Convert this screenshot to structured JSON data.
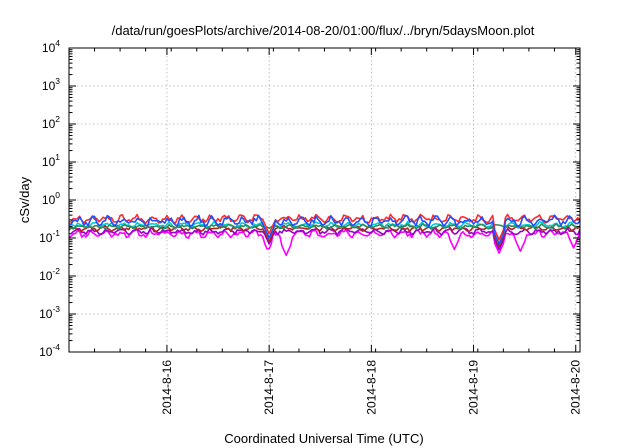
{
  "chart_data": {
    "type": "line",
    "title": "/data/run/goesPlots/archive/2014-08-20/01:00/flux/../bryn/5daysMoon.plot",
    "xlabel": "Coordinated Universal Time (UTC)",
    "ylabel": "cSv/day",
    "yscale": "log",
    "ylim": [
      0.0001,
      10000
    ],
    "xlim": [
      "2014-08-15 01:00",
      "2014-08-20 01:00"
    ],
    "grid": true,
    "x_ticks": [
      {
        "value": "2014-08-16 00:00",
        "label": "2014-8-16"
      },
      {
        "value": "2014-08-17 00:00",
        "label": "2014-8-17"
      },
      {
        "value": "2014-08-18 00:00",
        "label": "2014-8-18"
      },
      {
        "value": "2014-08-19 00:00",
        "label": "2014-8-19"
      },
      {
        "value": "2014-08-20 00:00",
        "label": "2014-8-20"
      }
    ],
    "y_ticks": [
      {
        "value": 0.0001,
        "base": "10",
        "exp": "-4"
      },
      {
        "value": 0.001,
        "base": "10",
        "exp": "-3"
      },
      {
        "value": 0.01,
        "base": "10",
        "exp": "-2"
      },
      {
        "value": 0.1,
        "base": "10",
        "exp": "-1"
      },
      {
        "value": 1,
        "base": "10",
        "exp": "0"
      },
      {
        "value": 10,
        "base": "10",
        "exp": "1"
      },
      {
        "value": 100,
        "base": "10",
        "exp": "2"
      },
      {
        "value": 1000,
        "base": "10",
        "exp": "3"
      },
      {
        "value": 10000,
        "base": "10",
        "exp": "4"
      }
    ],
    "series": [
      {
        "color": "#ff00ff",
        "level": 0.13,
        "jitter": 0.35,
        "seed": 11,
        "dips": [
          {
            "x": "2014-08-16 23:45",
            "y": 0.045
          },
          {
            "x": "2014-08-17 04:00",
            "y": 0.035
          },
          {
            "x": "2014-08-18 19:30",
            "y": 0.05
          },
          {
            "x": "2014-08-19 06:00",
            "y": 0.04
          },
          {
            "x": "2014-08-19 11:00",
            "y": 0.045
          },
          {
            "x": "2014-08-19 23:30",
            "y": 0.055
          }
        ]
      },
      {
        "color": "#9900cc",
        "level": 0.15,
        "jitter": 0.28,
        "seed": 23,
        "dips": [
          {
            "x": "2014-08-17 00:00",
            "y": 0.07
          },
          {
            "x": "2014-08-19 06:00",
            "y": 0.05
          }
        ]
      },
      {
        "color": "#b22222",
        "level": 0.18,
        "jitter": 0.25,
        "seed": 37,
        "dips": [
          {
            "x": "2014-08-17 00:00",
            "y": 0.08
          },
          {
            "x": "2014-08-19 06:00",
            "y": 0.06
          }
        ]
      },
      {
        "color": "#00ced1",
        "level": 0.22,
        "jitter": 0.25,
        "seed": 41,
        "dips": [
          {
            "x": "2014-08-17 00:00",
            "y": 0.1
          },
          {
            "x": "2014-08-19 06:00",
            "y": 0.07
          }
        ]
      },
      {
        "color": "#2e8b57",
        "level": 0.2,
        "jitter": 0.2,
        "seed": 53,
        "dips": []
      },
      {
        "color": "#ff2a2a",
        "level": 0.32,
        "jitter": 0.35,
        "seed": 67,
        "dips": [
          {
            "x": "2014-08-17 00:00",
            "y": 0.13
          },
          {
            "x": "2014-08-19 06:00",
            "y": 0.09
          }
        ]
      },
      {
        "color": "#1e50ff",
        "level": 0.28,
        "jitter": 0.45,
        "seed": 79,
        "dips": [
          {
            "x": "2014-08-17 00:00",
            "y": 0.1
          },
          {
            "x": "2014-08-19 06:00",
            "y": 0.07
          }
        ]
      }
    ]
  }
}
